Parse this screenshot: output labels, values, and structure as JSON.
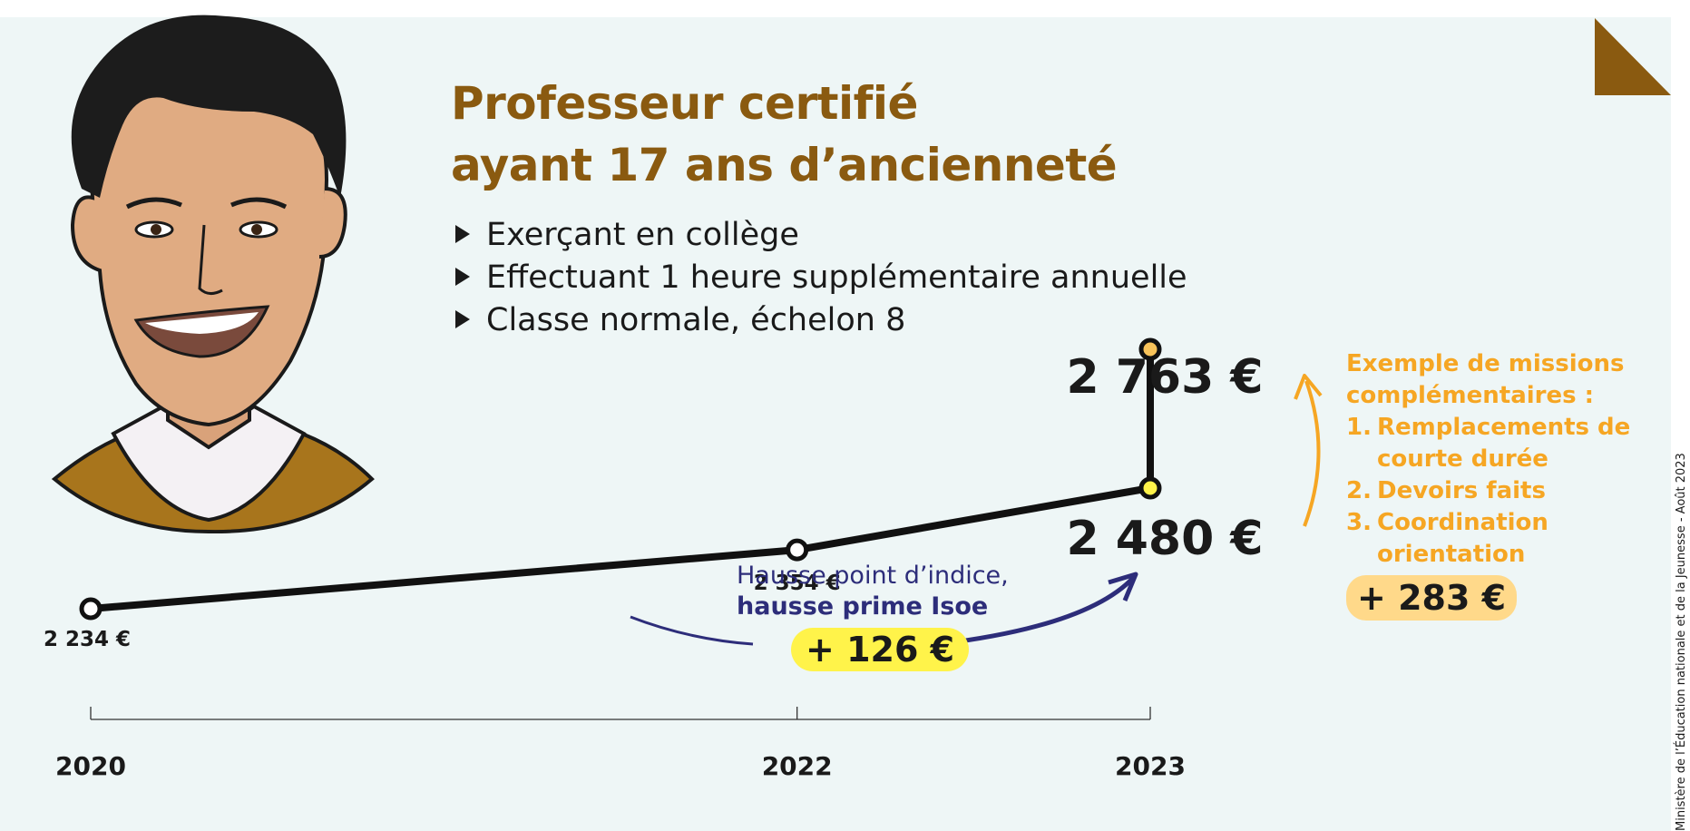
{
  "title": {
    "line1": "Professeur certifié",
    "line2": "ayant 17 ans d’ancienneté"
  },
  "bullets": [
    "Exerçant en collège",
    "Effectuant 1 heure supplémentaire annuelle",
    "Classe normale, échelon 8"
  ],
  "missions": {
    "title": "Exemple de missions complémentaires :",
    "items": [
      {
        "num": "1.",
        "text": "Remplacements de courte durée"
      },
      {
        "num": "2.",
        "text": "Devoirs faits"
      },
      {
        "num": "3.",
        "text": "Coordination orientation"
      }
    ],
    "badge": "+ 283 €"
  },
  "hausse": {
    "line1": "Hausse point d’indice,",
    "line2": "hausse prime Isoe",
    "badge": "+ 126 €"
  },
  "credit": "Ministère de l’Éducation nationale et de la Jeunesse - Août 2023",
  "colors": {
    "title": "#8a5a10",
    "missions": "#f6a623",
    "hausse": "#2d2d7a",
    "line": "#111111",
    "point_2023_base": "#fff34a",
    "point_2023_top": "#f8c35a",
    "background": "#eef6f6"
  },
  "chart_data": {
    "type": "line",
    "x": [
      "2020",
      "2022",
      "2023"
    ],
    "series": [
      {
        "values": [
          2234,
          2354,
          2480
        ]
      }
    ],
    "value_labels": [
      "2 234 €",
      "2 354 €",
      "2 480 €"
    ],
    "extra": {
      "year": "2023",
      "value": 2763,
      "label": "2 763 €"
    },
    "x_tick_labels": [
      "2020",
      "2022",
      "2023"
    ],
    "grid": false,
    "legend": "none"
  }
}
